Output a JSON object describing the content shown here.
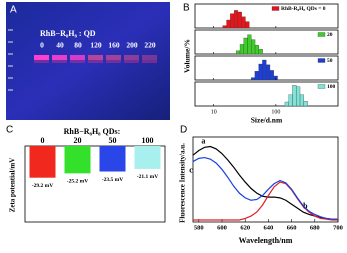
{
  "chart_data": [
    {
      "type": "photo",
      "panel_label": "A",
      "caption": "RhB−R₈H₈ : QD",
      "lanes": [
        0,
        40,
        80,
        120,
        160,
        200,
        220
      ]
    },
    {
      "type": "histogram",
      "panel_label": "B",
      "ylabel": "Volume/%",
      "xlabel": "Size/d.nm",
      "log_x": true,
      "xlim": [
        5,
        1000
      ],
      "xticks": [
        10,
        100
      ],
      "ylim": [
        0,
        30
      ],
      "series": [
        {
          "name": "RhB-R₈H₈ QDs = 0",
          "color": "#e8141b",
          "bins": [
            14,
            16.1,
            18.5,
            21.3,
            24.5,
            28.2,
            32.4,
            37.3
          ],
          "values": [
            3,
            10,
            18,
            22,
            20,
            14,
            8
          ]
        },
        {
          "name": "20",
          "color": "#3dcc2a",
          "bins": [
            23,
            26.5,
            30.4,
            35,
            40.2,
            46.3,
            53.2,
            61.2
          ],
          "values": [
            4,
            12,
            20,
            24,
            18,
            11,
            6
          ]
        },
        {
          "name": "50",
          "color": "#1c3fd6",
          "bins": [
            40,
            46,
            52.9,
            60.8,
            70,
            80.4,
            92.5,
            106.4
          ],
          "values": [
            3,
            11,
            20,
            25,
            19,
            12,
            5
          ]
        },
        {
          "name": "100",
          "color": "#7fe3d8",
          "bins": [
            140,
            161,
            185,
            213,
            245,
            282,
            324
          ],
          "values": [
            5,
            14,
            26,
            24,
            14,
            6
          ]
        }
      ]
    },
    {
      "type": "bar",
      "panel_label": "C",
      "title": "RhB−R₈H₈ QDs:",
      "ylabel": "Zeta potential/mV",
      "categories": [
        0,
        20,
        50,
        100
      ],
      "values": [
        -29.2,
        -25.2,
        -23.5,
        -21.1
      ],
      "value_labels": [
        "-29.2 mV",
        "-25.2 mV",
        "-23.5 mV",
        "-21.1 mV"
      ],
      "colors": [
        "#f0281e",
        "#33e02a",
        "#2a45e8",
        "#a8f0ee"
      ],
      "ylim": [
        -70,
        0
      ]
    },
    {
      "type": "line",
      "panel_label": "D",
      "ylabel": "Fluorescence Intensity/a.u.",
      "xlabel": "Wavelength/nm",
      "xlim": [
        575,
        700
      ],
      "xticks": [
        580,
        600,
        620,
        640,
        660,
        680,
        700
      ],
      "ylim": [
        0,
        1
      ],
      "x": [
        575,
        580,
        585,
        590,
        595,
        600,
        605,
        610,
        615,
        620,
        625,
        630,
        635,
        640,
        645,
        650,
        655,
        660,
        665,
        670,
        675,
        680,
        685,
        690,
        695,
        700
      ],
      "series": [
        {
          "name": "a",
          "color": "#000000",
          "values": [
            0.82,
            0.88,
            0.92,
            0.93,
            0.9,
            0.84,
            0.76,
            0.67,
            0.57,
            0.48,
            0.4,
            0.34,
            0.3,
            0.29,
            0.29,
            0.28,
            0.25,
            0.2,
            0.15,
            0.1,
            0.07,
            0.05,
            0.03,
            0.02,
            0.01,
            0.01
          ]
        },
        {
          "name": "b",
          "color": "#e0202a",
          "values": [
            0,
            0,
            0,
            0,
            0,
            0,
            0,
            0,
            0,
            0.02,
            0.05,
            0.1,
            0.19,
            0.31,
            0.42,
            0.48,
            0.46,
            0.38,
            0.27,
            0.17,
            0.1,
            0.05,
            0.02,
            0.01,
            0,
            0
          ]
        },
        {
          "name": "c",
          "color": "#1a3fe0",
          "values": [
            0.74,
            0.78,
            0.79,
            0.77,
            0.72,
            0.64,
            0.54,
            0.43,
            0.34,
            0.28,
            0.25,
            0.26,
            0.31,
            0.39,
            0.46,
            0.5,
            0.47,
            0.39,
            0.28,
            0.18,
            0.11,
            0.07,
            0.04,
            0.02,
            0.01,
            0.01
          ]
        }
      ]
    }
  ]
}
